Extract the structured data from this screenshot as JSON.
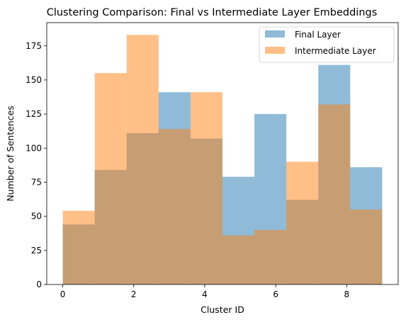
{
  "chart_data": {
    "type": "bar",
    "title": "Clustering Comparison: Final vs Intermediate Layer Embeddings",
    "xlabel": "Cluster ID",
    "ylabel": "Number of Sentences",
    "xlim": [
      -0.45,
      9.45
    ],
    "ylim": [
      0,
      192
    ],
    "xticks": [
      "0",
      "2",
      "4",
      "6",
      "8"
    ],
    "yticks": [
      "0",
      "25",
      "50",
      "75",
      "100",
      "125",
      "150",
      "175"
    ],
    "bins": [
      [
        0.0,
        0.9
      ],
      [
        0.9,
        1.8
      ],
      [
        1.8,
        2.7
      ],
      [
        2.7,
        3.6
      ],
      [
        3.6,
        4.5
      ],
      [
        4.5,
        5.4
      ],
      [
        5.4,
        6.3
      ],
      [
        6.3,
        7.2
      ],
      [
        7.2,
        8.1
      ],
      [
        8.1,
        9.0
      ]
    ],
    "series": [
      {
        "name": "Final Layer",
        "color": "#1f77b4",
        "alpha": 0.5,
        "values": [
          44,
          84,
          111,
          141,
          107,
          79,
          125,
          62,
          161,
          86
        ]
      },
      {
        "name": "Intermediate Layer",
        "color": "#ff7f0e",
        "alpha": 0.5,
        "values": [
          54,
          155,
          183,
          114,
          141,
          36,
          40,
          90,
          132,
          55
        ]
      }
    ],
    "grid": false,
    "legend_position": "top-right"
  }
}
